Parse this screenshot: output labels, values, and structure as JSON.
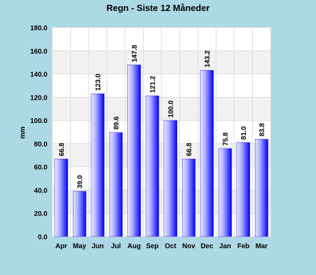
{
  "chart_data": {
    "type": "bar",
    "title": "Regn - Siste 12 Måneder",
    "xlabel": "",
    "ylabel": "mm",
    "categories": [
      "Apr",
      "May",
      "Jun",
      "Jul",
      "Aug",
      "Sep",
      "Oct",
      "Nov",
      "Dec",
      "Jan",
      "Feb",
      "Mar"
    ],
    "values": [
      66.8,
      39.0,
      123.0,
      89.6,
      147.8,
      121.2,
      100.0,
      66.8,
      143.2,
      75.8,
      81.0,
      83.8
    ],
    "value_labels": [
      "66.8",
      "39.0",
      "123.0",
      "89.6",
      "147.8",
      "121.2",
      "100.0",
      "66.8",
      "143.2",
      "75.8",
      "81.0",
      "83.8"
    ],
    "ylim": [
      0,
      180
    ],
    "yticks": [
      "0.0",
      "20.0",
      "40.0",
      "60.0",
      "80.0",
      "100.0",
      "120.0",
      "140.0",
      "160.0",
      "180.0"
    ],
    "grid": true,
    "legend": "none",
    "colors": {
      "background": "#add8e6",
      "plot_band_light": "#ffffff",
      "plot_band_dark": "#f2f2f2",
      "grid": "#dcdcdc",
      "bar_light": "#e6e6ff",
      "bar_dark": "#0000ff"
    }
  }
}
